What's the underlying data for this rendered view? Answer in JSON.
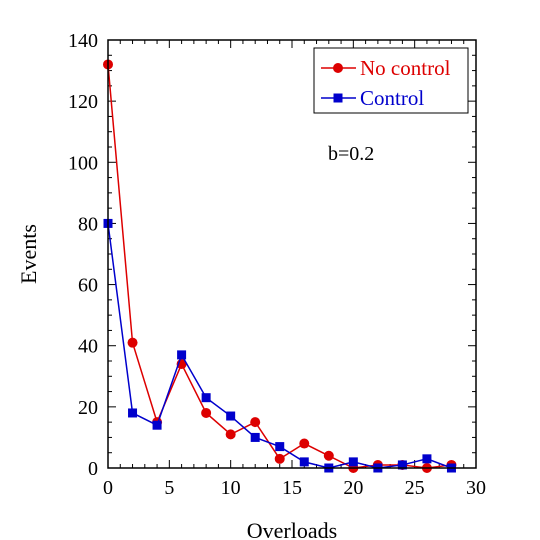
{
  "chart_data": {
    "type": "line",
    "title": "",
    "xlabel": "Overloads",
    "ylabel": "Events",
    "xlim": [
      0,
      30
    ],
    "ylim": [
      0,
      140
    ],
    "xticks": [
      0,
      5,
      10,
      15,
      20,
      25,
      30
    ],
    "yticks": [
      0,
      20,
      40,
      60,
      80,
      100,
      120,
      140
    ],
    "grid": false,
    "legend_position": "top-right",
    "annotation": "b=0.2",
    "series": [
      {
        "name": "No control",
        "color": "#dd0000",
        "marker": "circle",
        "x": [
          0,
          2,
          4,
          6,
          8,
          10,
          12,
          14,
          16,
          18,
          20,
          22,
          24,
          26,
          28
        ],
        "y": [
          132,
          41,
          15,
          34,
          18,
          11,
          15,
          3,
          8,
          4,
          0,
          1,
          1,
          0,
          1
        ]
      },
      {
        "name": "Control",
        "color": "#0000cc",
        "marker": "square",
        "x": [
          0,
          2,
          4,
          6,
          8,
          10,
          12,
          14,
          16,
          18,
          20,
          22,
          24,
          26,
          28
        ],
        "y": [
          80,
          18,
          14,
          37,
          23,
          17,
          10,
          7,
          2,
          0,
          2,
          0,
          1,
          3,
          0
        ]
      }
    ]
  }
}
